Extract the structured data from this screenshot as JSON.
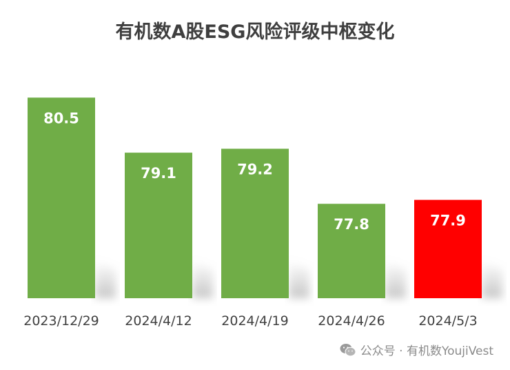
{
  "chart_data": {
    "type": "bar",
    "title": "有机数A股ESG风险评级中枢变化",
    "categories": [
      "2023/12/29",
      "2024/4/12",
      "2024/4/19",
      "2024/4/26",
      "2024/5/3"
    ],
    "values": [
      80.5,
      79.1,
      79.2,
      77.8,
      77.9
    ],
    "value_labels": [
      "80.5",
      "79.1",
      "79.2",
      "77.8",
      "77.9"
    ],
    "colors": [
      "#70ad47",
      "#70ad47",
      "#70ad47",
      "#70ad47",
      "#ff0000"
    ],
    "label_color": "#ffffff",
    "ylim": [
      75.4,
      80.7
    ],
    "grid": false,
    "legend": "none"
  },
  "watermark": {
    "icon": "wechat-icon",
    "text": "公众号 · 有机数YoujiVest"
  }
}
